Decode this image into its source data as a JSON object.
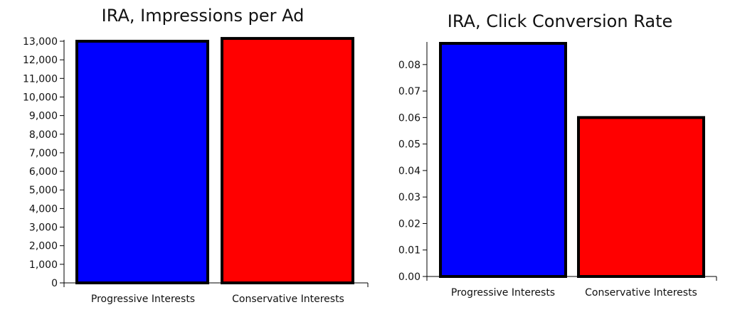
{
  "chart_data": [
    {
      "type": "bar",
      "title": "IRA, Impressions per Ad",
      "xlabel": "",
      "ylabel": "",
      "categories": [
        "Progressive Interests",
        "Conservative Interests"
      ],
      "values": [
        13000,
        13150
      ],
      "colors": [
        "#0000ff",
        "#ff0000"
      ],
      "ylim": [
        0,
        13000
      ],
      "ytick_values": [
        0,
        1000,
        2000,
        3000,
        4000,
        5000,
        6000,
        7000,
        8000,
        9000,
        10000,
        11000,
        12000,
        13000
      ],
      "ytick_labels": [
        "0",
        "1,000",
        "2,000",
        "3,000",
        "4,000",
        "5,000",
        "6,000",
        "7,000",
        "8,000",
        "9,000",
        "10,000",
        "11,000",
        "12,000",
        "13,000"
      ],
      "grid": false,
      "legend": "none"
    },
    {
      "type": "bar",
      "title": "IRA, Click Conversion Rate",
      "xlabel": "",
      "ylabel": "",
      "categories": [
        "Progressive Interests",
        "Conservative Interests"
      ],
      "values": [
        0.088,
        0.06
      ],
      "colors": [
        "#0000ff",
        "#ff0000"
      ],
      "ylim": [
        0,
        0.088
      ],
      "ytick_values": [
        0,
        0.01,
        0.02,
        0.03,
        0.04,
        0.05,
        0.06,
        0.07,
        0.08
      ],
      "ytick_labels": [
        "0.00",
        "0.01",
        "0.02",
        "0.03",
        "0.04",
        "0.05",
        "0.06",
        "0.07",
        "0.08"
      ],
      "grid": false,
      "legend": "none"
    }
  ]
}
